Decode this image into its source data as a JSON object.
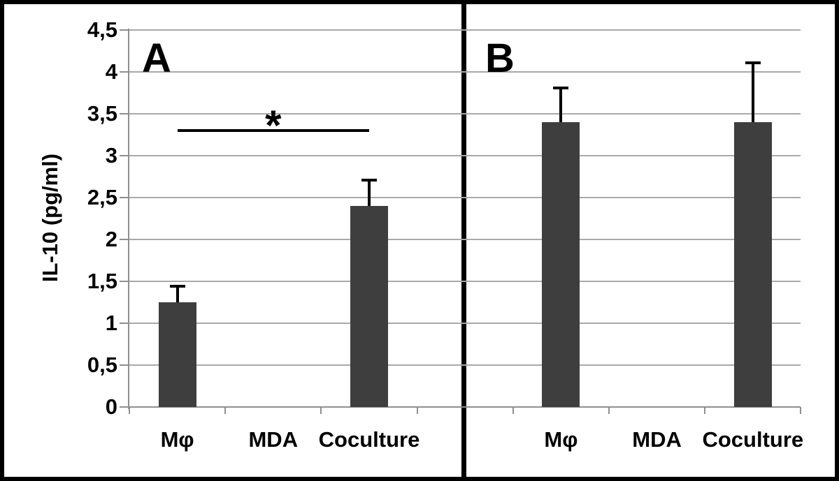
{
  "figure": {
    "description": "Two-panel bar chart figure",
    "ylabel": "IL-10 (pg/ml)",
    "y_axis": {
      "min": 0,
      "max": 4.5,
      "step": 0.5,
      "labels_top_to_bottom": [
        "4,5",
        "4",
        "3,5",
        "3",
        "2,5",
        "2",
        "1,5",
        "1",
        "0,5",
        "0"
      ]
    },
    "colors": {
      "background": "#ffffff",
      "bar": "#3e3e3e",
      "gridline": "#a9a9a9",
      "axis": "#8f8f8f",
      "border": "#000000",
      "error_bar": "#000000",
      "significance": "#000000",
      "text": "#000000"
    }
  },
  "chart_data": [
    {
      "type": "bar",
      "panel": "A",
      "categories": [
        "Mφ",
        "MDA",
        "Coculture"
      ],
      "values": [
        1.25,
        0,
        2.4
      ],
      "errors_plus": [
        0.2,
        0,
        0.32
      ],
      "ylabel": "IL-10 (pg/ml)",
      "ylim": [
        0,
        4.5
      ],
      "grid": true,
      "legend": "none",
      "significance": {
        "between_indices": [
          0,
          2
        ],
        "label": "*",
        "line_y": 3.3
      }
    },
    {
      "type": "bar",
      "panel": "B",
      "categories": [
        "Mφ",
        "MDA",
        "Coculture"
      ],
      "values": [
        3.4,
        0,
        3.4
      ],
      "errors_plus": [
        0.42,
        0,
        0.72
      ],
      "ylabel": "IL-10 (pg/ml)",
      "ylim": [
        0,
        4.5
      ],
      "grid": true,
      "legend": "none"
    }
  ]
}
